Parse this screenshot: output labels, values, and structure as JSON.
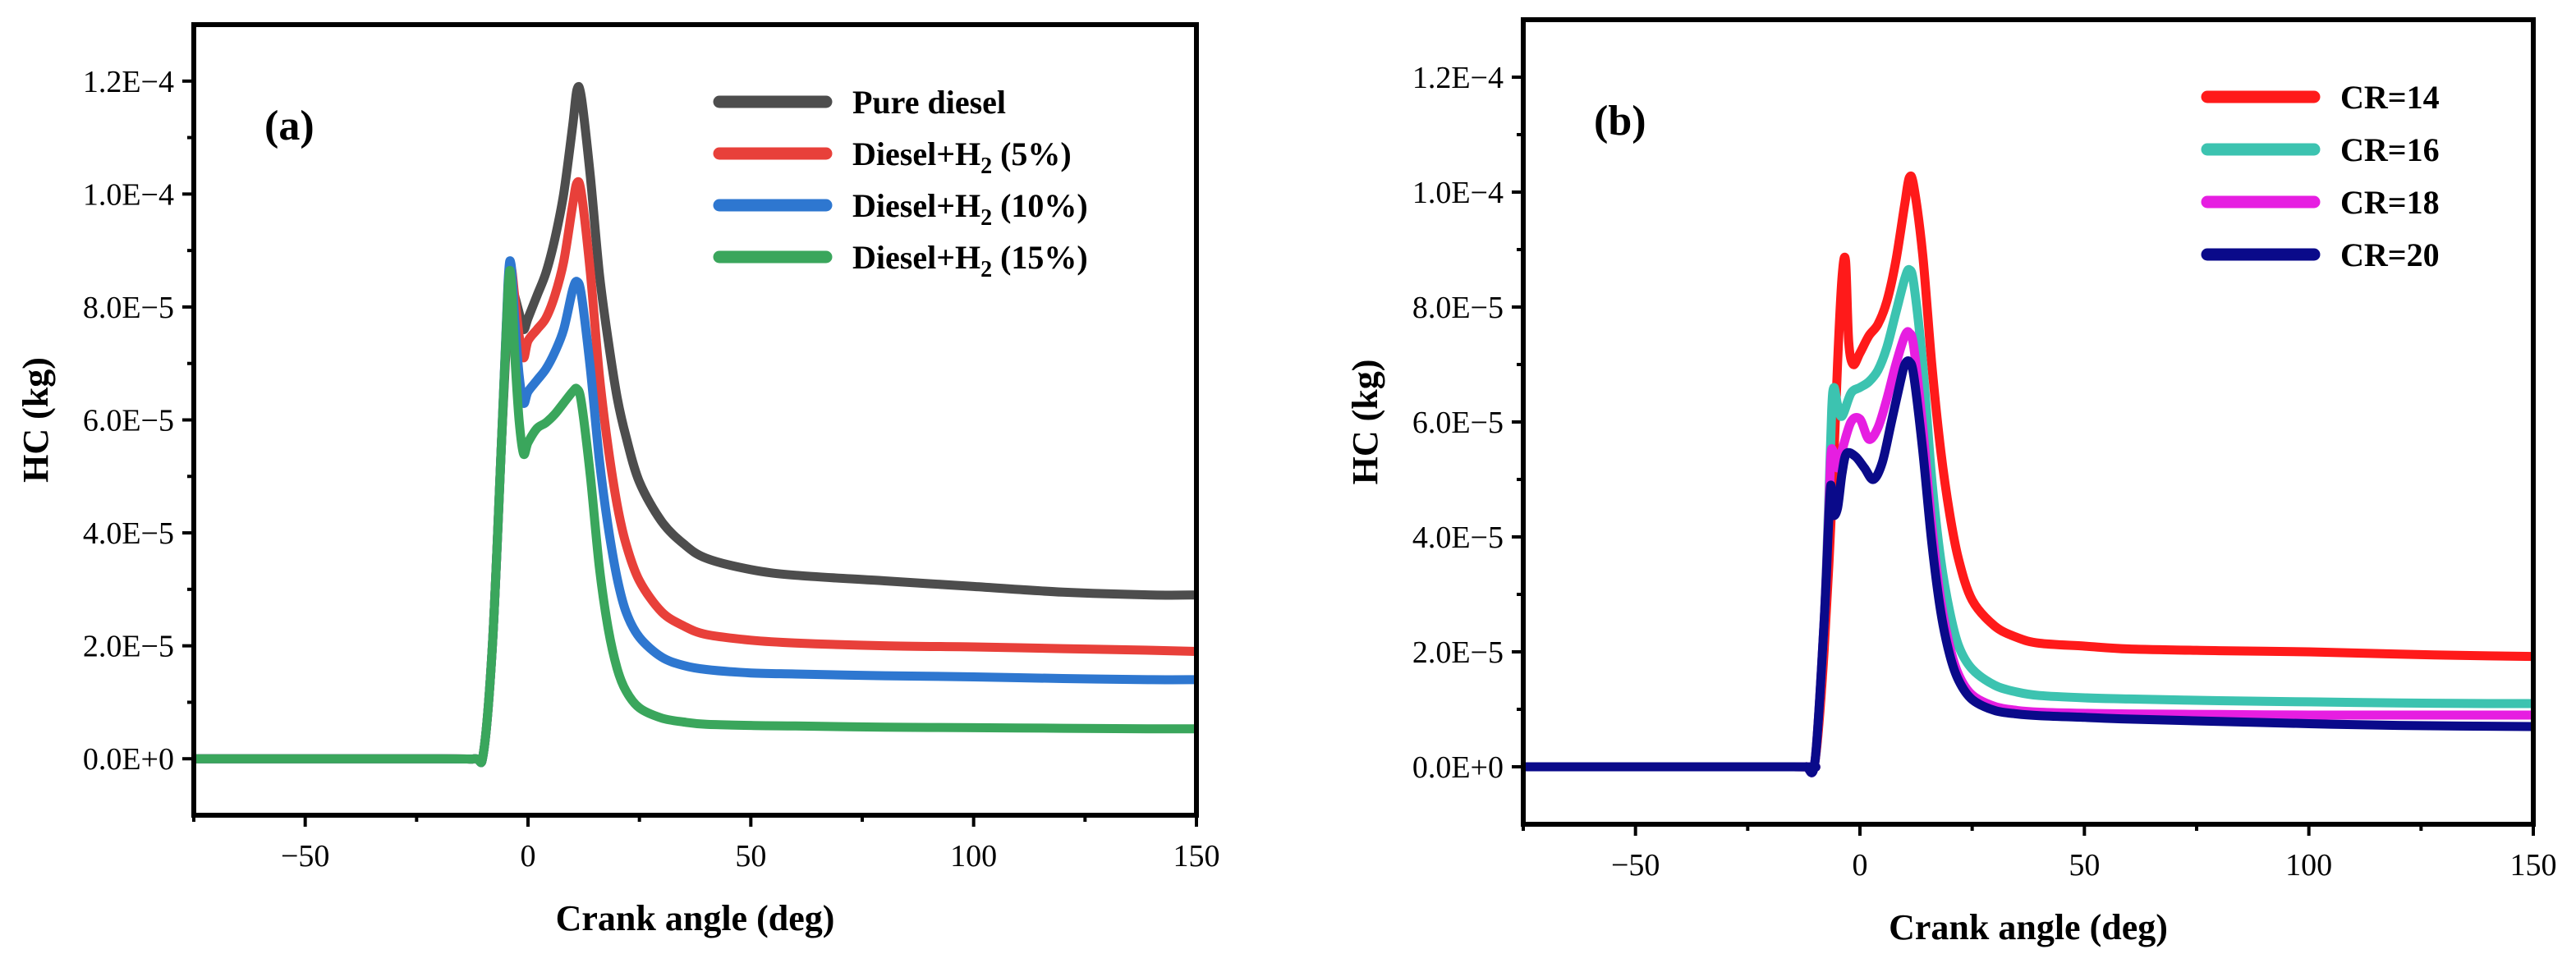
{
  "chart_data": [
    {
      "type": "line",
      "panel": "(a)",
      "xlabel": "Crank angle (deg)",
      "ylabel": "HC (kg)",
      "xlim": [
        -75,
        150
      ],
      "ylim": [
        -1e-05,
        0.00013
      ],
      "xticks": [
        -50,
        0,
        50,
        100,
        150
      ],
      "xtick_labels": [
        "−50",
        "0",
        "50",
        "100",
        "150"
      ],
      "yticks": [
        0,
        2e-05,
        4e-05,
        6e-05,
        8e-05,
        0.0001,
        0.00012
      ],
      "ytick_labels": [
        "0.0E+0",
        "2.0E−5",
        "4.0E−5",
        "6.0E−5",
        "8.0E−5",
        "1.0E−4",
        "1.2E−4"
      ],
      "legend_position": "top-right",
      "series": [
        {
          "name": "Pure diesel",
          "sub": "",
          "tail": "",
          "color": "#4d4d4d",
          "x": [
            -75,
            -20,
            -12,
            -10,
            -8,
            -6,
            -4.5,
            -3.8,
            -3,
            -2,
            -1,
            0,
            2,
            4,
            6,
            8,
            10,
            11,
            12,
            14,
            16,
            18,
            20,
            22,
            25,
            30,
            35,
            40,
            50,
            60,
            80,
            100,
            120,
            140,
            150
          ],
          "y": [
            0,
            0,
            0,
            1e-06,
            2e-05,
            5.5e-05,
            8e-05,
            8.4e-05,
            8.2e-05,
            7.9e-05,
            7.6e-05,
            7.8e-05,
            8.2e-05,
            8.6e-05,
            9.2e-05,
            0.0001,
            0.000112,
            0.0001185,
            0.000117,
            0.000103,
            8.6e-05,
            7.4e-05,
            6.4e-05,
            5.7e-05,
            4.9e-05,
            4.2e-05,
            3.8e-05,
            3.55e-05,
            3.35e-05,
            3.25e-05,
            3.15e-05,
            3.05e-05,
            2.95e-05,
            2.9e-05,
            2.9e-05
          ]
        },
        {
          "name": "Diesel+H",
          "sub": "2",
          "tail": " (5%)",
          "color": "#e8403a",
          "x": [
            -75,
            -20,
            -12,
            -10,
            -8,
            -6,
            -4.5,
            -3.8,
            -3,
            -2,
            -1,
            0,
            2,
            4,
            6,
            8,
            10,
            11,
            12,
            14,
            16,
            18,
            20,
            22,
            25,
            30,
            35,
            40,
            50,
            60,
            80,
            100,
            120,
            140,
            150
          ],
          "y": [
            0,
            0,
            0,
            1e-06,
            2e-05,
            5.5e-05,
            8.3e-05,
            8.7e-05,
            8.2e-05,
            7.5e-05,
            7.1e-05,
            7.4e-05,
            7.6e-05,
            7.8e-05,
            8.2e-05,
            8.8e-05,
            9.8e-05,
            0.000102,
            0.0001,
            8.6e-05,
            6.8e-05,
            5.5e-05,
            4.5e-05,
            3.8e-05,
            3.15e-05,
            2.6e-05,
            2.35e-05,
            2.2e-05,
            2.1e-05,
            2.05e-05,
            2e-05,
            1.98e-05,
            1.95e-05,
            1.92e-05,
            1.9e-05
          ]
        },
        {
          "name": "Diesel+H",
          "sub": "2",
          "tail": " (10%)",
          "color": "#2e77d0",
          "x": [
            -75,
            -20,
            -12,
            -10,
            -8,
            -6,
            -4.5,
            -3.8,
            -3,
            -2,
            -1,
            0,
            2,
            4,
            6,
            8,
            10,
            11,
            12,
            14,
            16,
            18,
            20,
            22,
            25,
            30,
            35,
            40,
            50,
            60,
            80,
            100,
            120,
            140,
            150
          ],
          "y": [
            0,
            0,
            0,
            1e-06,
            2e-05,
            5.5e-05,
            8.4e-05,
            8.75e-05,
            7.8e-05,
            6.8e-05,
            6.3e-05,
            6.5e-05,
            6.7e-05,
            6.9e-05,
            7.2e-05,
            7.6e-05,
            8.3e-05,
            8.45e-05,
            8.2e-05,
            6.9e-05,
            5.3e-05,
            4.1e-05,
            3.2e-05,
            2.6e-05,
            2.15e-05,
            1.8e-05,
            1.65e-05,
            1.58e-05,
            1.52e-05,
            1.5e-05,
            1.47e-05,
            1.45e-05,
            1.42e-05,
            1.4e-05,
            1.4e-05
          ]
        },
        {
          "name": "Diesel+H",
          "sub": "2",
          "tail": " (15%)",
          "color": "#3aa65c",
          "x": [
            -75,
            -20,
            -12,
            -10,
            -8,
            -6,
            -4.5,
            -3.8,
            -3,
            -2,
            -1,
            0,
            2,
            4,
            6,
            8,
            10,
            11,
            12,
            14,
            16,
            18,
            20,
            22,
            25,
            30,
            35,
            40,
            50,
            60,
            80,
            100,
            120,
            140,
            150
          ],
          "y": [
            0,
            0,
            0,
            1e-06,
            2e-05,
            5.5e-05,
            8.3e-05,
            8.5e-05,
            7.2e-05,
            6e-05,
            5.4e-05,
            5.6e-05,
            5.85e-05,
            5.95e-05,
            6.1e-05,
            6.3e-05,
            6.5e-05,
            6.55e-05,
            6.3e-05,
            5e-05,
            3.4e-05,
            2.3e-05,
            1.6e-05,
            1.2e-05,
            9e-06,
            7.2e-06,
            6.5e-06,
            6.1e-06,
            5.9e-06,
            5.8e-06,
            5.6e-06,
            5.5e-06,
            5.4e-06,
            5.3e-06,
            5.3e-06
          ]
        }
      ]
    },
    {
      "type": "line",
      "panel": "(b)",
      "xlabel": "Crank angle (deg)",
      "ylabel": "HC (kg)",
      "xlim": [
        -75,
        150
      ],
      "ylim": [
        -1e-05,
        0.00013
      ],
      "xticks": [
        -50,
        0,
        50,
        100,
        150
      ],
      "xtick_labels": [
        "−50",
        "0",
        "50",
        "100",
        "150"
      ],
      "yticks": [
        0,
        2e-05,
        4e-05,
        6e-05,
        8e-05,
        0.0001,
        0.00012
      ],
      "ytick_labels": [
        "0.0E+0",
        "2.0E−5",
        "4.0E−5",
        "6.0E−5",
        "8.0E−5",
        "1.0E−4",
        "1.2E−4"
      ],
      "legend_position": "top-right",
      "series": [
        {
          "name": "CR=14",
          "sub": "",
          "tail": "",
          "color": "#ff1a1a",
          "x": [
            -75,
            -15,
            -12,
            -10,
            -8,
            -6,
            -5,
            -4,
            -3.2,
            -2.5,
            -1.5,
            0,
            2,
            4,
            6,
            8,
            10,
            11,
            12,
            14,
            16,
            18,
            20,
            22,
            25,
            30,
            35,
            40,
            50,
            60,
            80,
            100,
            120,
            140,
            150
          ],
          "y": [
            0,
            0,
            0,
            1e-06,
            2e-05,
            5e-05,
            7e-05,
            8.5e-05,
            8.8e-05,
            7.4e-05,
            7e-05,
            7.2e-05,
            7.5e-05,
            7.7e-05,
            8.1e-05,
            8.8e-05,
            9.8e-05,
            0.0001025,
            0.000101,
            8.9e-05,
            7e-05,
            5.5e-05,
            4.4e-05,
            3.6e-05,
            2.9e-05,
            2.45e-05,
            2.25e-05,
            2.15e-05,
            2.1e-05,
            2.05e-05,
            2.02e-05,
            2e-05,
            1.96e-05,
            1.93e-05,
            1.92e-05
          ]
        },
        {
          "name": "CR=16",
          "sub": "",
          "tail": "",
          "color": "#3cc3b0",
          "x": [
            -75,
            -15,
            -12,
            -10,
            -8,
            -7,
            -6.3,
            -5.8,
            -5,
            -4,
            -2,
            0,
            2,
            4,
            6,
            8,
            10,
            11,
            12,
            14,
            16,
            18,
            20,
            22,
            25,
            30,
            35,
            40,
            50,
            60,
            80,
            100,
            120,
            140,
            150
          ],
          "y": [
            0,
            0,
            0,
            1e-06,
            2.5e-05,
            4.5e-05,
            6.2e-05,
            6.6e-05,
            6.3e-05,
            6.1e-05,
            6.5e-05,
            6.6e-05,
            6.7e-05,
            6.9e-05,
            7.3e-05,
            7.9e-05,
            8.5e-05,
            8.65e-05,
            8.4e-05,
            7e-05,
            5e-05,
            3.6e-05,
            2.7e-05,
            2.1e-05,
            1.7e-05,
            1.42e-05,
            1.3e-05,
            1.24e-05,
            1.2e-05,
            1.18e-05,
            1.15e-05,
            1.13e-05,
            1.11e-05,
            1.1e-05,
            1.1e-05
          ]
        },
        {
          "name": "CR=18",
          "sub": "",
          "tail": "",
          "color": "#e61ee1",
          "x": [
            -75,
            -15,
            -12,
            -10,
            -8,
            -7,
            -6.5,
            -6,
            -5,
            -4,
            -2,
            0,
            2,
            4,
            6,
            8,
            10,
            11,
            12,
            14,
            16,
            18,
            20,
            22,
            25,
            30,
            35,
            40,
            50,
            60,
            80,
            100,
            120,
            140,
            150
          ],
          "y": [
            0,
            0,
            0,
            1e-06,
            2.5e-05,
            4.3e-05,
            5.4e-05,
            5.5e-05,
            5.2e-05,
            5.5e-05,
            6e-05,
            6.05e-05,
            5.7e-05,
            5.9e-05,
            6.4e-05,
            7e-05,
            7.5e-05,
            7.55e-05,
            7.3e-05,
            5.9e-05,
            4.2e-05,
            2.9e-05,
            2.1e-05,
            1.6e-05,
            1.25e-05,
            1.05e-05,
            9.8e-06,
            9.5e-06,
            9.3e-06,
            9.2e-06,
            9.1e-06,
            9e-06,
            9e-06,
            9e-06,
            9e-06
          ]
        },
        {
          "name": "CR=20",
          "sub": "",
          "tail": "",
          "color": "#0a0a8a",
          "x": [
            -75,
            -15,
            -12,
            -10,
            -8,
            -7,
            -6.5,
            -6,
            -5,
            -4,
            -3,
            -1,
            1,
            3,
            5,
            7,
            9,
            10,
            11,
            12,
            14,
            16,
            18,
            20,
            22,
            25,
            30,
            35,
            40,
            50,
            60,
            80,
            100,
            120,
            150
          ],
          "y": [
            0,
            0,
            0,
            1e-06,
            2.5e-05,
            4.2e-05,
            4.9e-05,
            4.4e-05,
            4.5e-05,
            5.1e-05,
            5.45e-05,
            5.4e-05,
            5.2e-05,
            5e-05,
            5.3e-05,
            6e-05,
            6.7e-05,
            7e-05,
            7.05e-05,
            6.8e-05,
            5.5e-05,
            3.9e-05,
            2.7e-05,
            1.95e-05,
            1.5e-05,
            1.17e-05,
            9.8e-06,
            9.2e-06,
            8.9e-06,
            8.6e-06,
            8.3e-06,
            7.9e-06,
            7.5e-06,
            7.2e-06,
            7e-06
          ]
        }
      ]
    }
  ]
}
